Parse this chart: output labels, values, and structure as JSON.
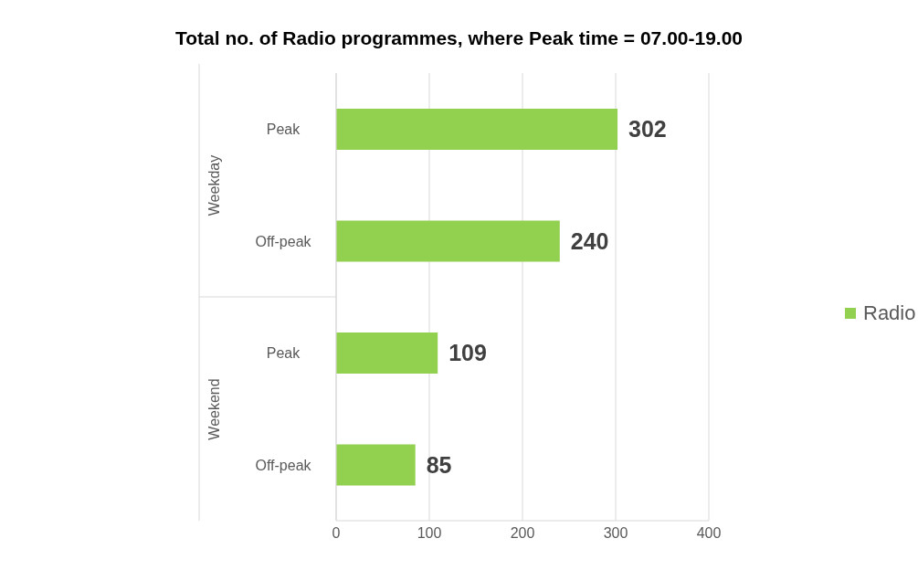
{
  "chart_data": {
    "type": "bar",
    "orientation": "horizontal",
    "title": "Total no. of Radio programmes, where Peak time = 07.00-19.00",
    "categories": [
      "Peak",
      "Off-peak",
      "Peak",
      "Off-peak"
    ],
    "series": [
      {
        "name": "Radio",
        "color": "#92d050",
        "values": [
          302,
          240,
          109,
          85
        ]
      }
    ],
    "annotations": [
      "Weekday",
      "Weekend"
    ],
    "xlim": [
      0,
      400
    ],
    "xticks": [
      0,
      100,
      200,
      300,
      400
    ],
    "grid": "x",
    "legend": "right",
    "data_labels": true
  }
}
